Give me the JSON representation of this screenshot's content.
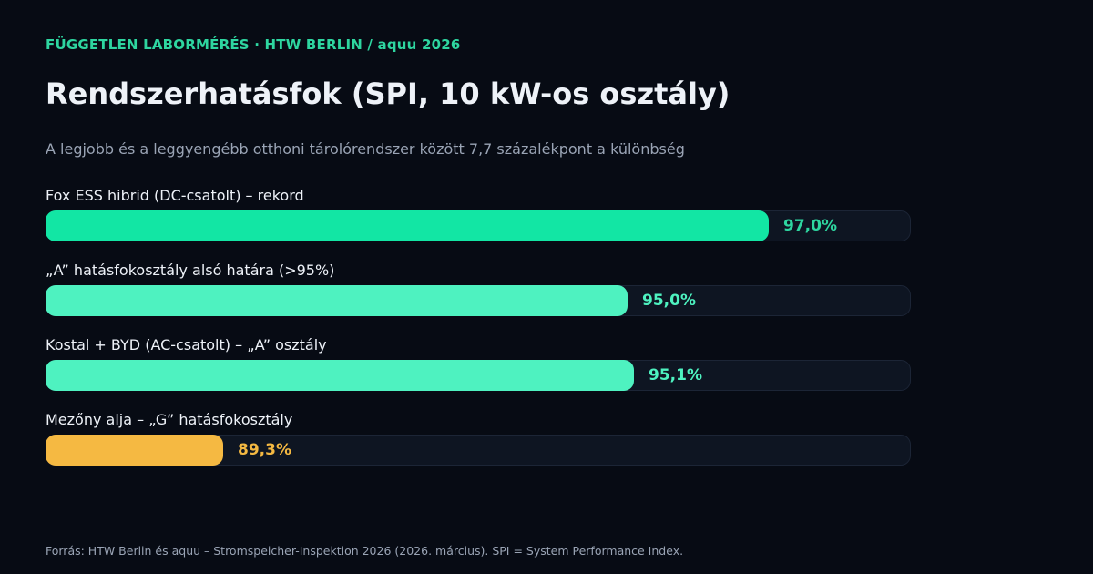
{
  "kicker": "FÜGGETLEN LABORMÉRÉS · HTW BERLIN / aquu 2026",
  "title": "Rendszerhatásfok (SPI, 10 kW-os osztály)",
  "subtitle": "A legjobb és a leggyengébb otthoni tárolórendszer között 7,7 százalékpont a különbség",
  "source": "Forrás: HTW Berlin és aquu – Stromspeicher-Inspektion 2026 (2026. március). SPI = System Performance Index.",
  "colors": {
    "accent": "#2ed6a0",
    "background": "#070b14",
    "track": "#0e1522",
    "record": "#12e6a4",
    "class_a": "#4ef2c0",
    "class_g": "#f5b942"
  },
  "chart_data": {
    "type": "bar",
    "orientation": "horizontal",
    "title": "Rendszerhatásfok (SPI, 10 kW-os osztály)",
    "subtitle": "A legjobb és a leggyengébb otthoni tárolórendszer között 7,7 százalékpont a különbség",
    "unit": "%",
    "xlim": [
      86.8,
      99.0
    ],
    "grid": false,
    "categories": [
      "Fox ESS hibrid (DC-csatolt) – rekord",
      "„A” hatásfokosztály alsó határa (>95%)",
      "Kostal + BYD (AC-csatolt) – „A” osztály",
      "Mezőny alja – „G” hatásfokosztály"
    ],
    "values": [
      97.0,
      95.0,
      95.1,
      89.3
    ],
    "value_labels": [
      "97,0%",
      "95,0%",
      "95,1%",
      "89,3%"
    ],
    "bar_colors": [
      "#12e6a4",
      "#4ef2c0",
      "#4ef2c0",
      "#f5b942"
    ],
    "value_label_colors": [
      "#2ed6a0",
      "#4ef2c0",
      "#4ef2c0",
      "#f5b942"
    ]
  }
}
